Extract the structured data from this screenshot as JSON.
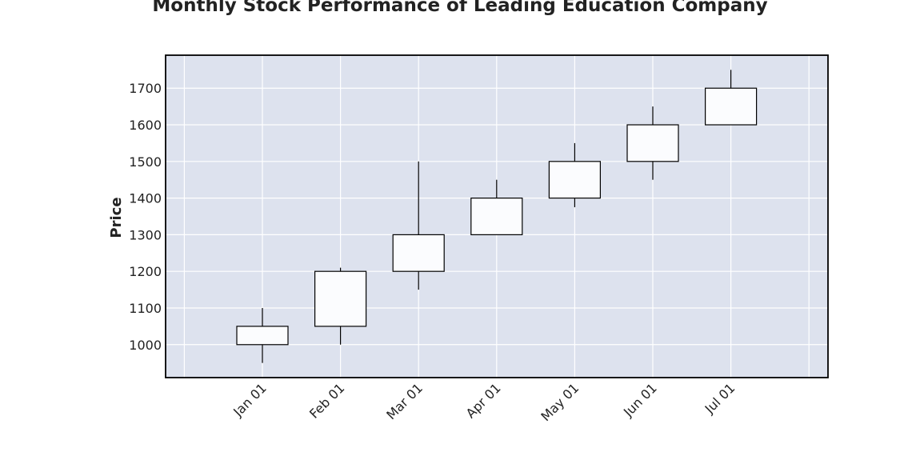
{
  "chart_data": {
    "type": "candlestick",
    "title": "Monthly Stock Performance of Leading Education Company",
    "xlabel": "",
    "ylabel": "Price",
    "categories": [
      "Jan 01",
      "Feb 01",
      "Mar 01",
      "Apr 01",
      "May 01",
      "Jun 01",
      "Jul 01"
    ],
    "open": [
      1000,
      1050,
      1200,
      1300,
      1400,
      1500,
      1600
    ],
    "high": [
      1100,
      1210,
      1500,
      1450,
      1550,
      1650,
      1750
    ],
    "low": [
      950,
      1000,
      1150,
      1300,
      1375,
      1450,
      1600
    ],
    "close": [
      1050,
      1200,
      1300,
      1400,
      1500,
      1600,
      1700
    ],
    "yticks": [
      1000,
      1100,
      1200,
      1300,
      1400,
      1500,
      1600,
      1700
    ],
    "ylim": [
      910,
      1790
    ],
    "grid": true,
    "colors": {
      "plot_background": "#dde2ee",
      "grid": "#ffffff",
      "candle_body": "#fbfcfe",
      "candle_edge": "#000000"
    }
  }
}
